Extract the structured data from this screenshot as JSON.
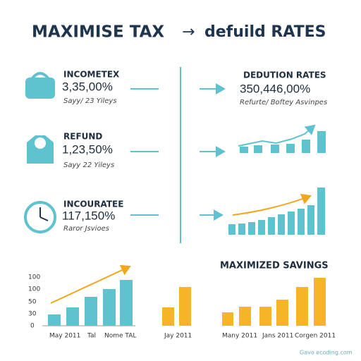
{
  "header": {
    "title_left": "MAXIMISE TAX",
    "title_arrow": "→",
    "title_right": "defuild RATES"
  },
  "items": [
    {
      "label": "INCOMETEX",
      "value": "3,35,00%",
      "note": "Sayy/ 23 Yileys"
    },
    {
      "label": "REFUND",
      "value": "1,23,50%",
      "note": "Sayy 22 Yileys"
    },
    {
      "label": "INCOURATEE",
      "value": "117,150%",
      "note": "Raror Jsvioes"
    }
  ],
  "deduction": {
    "label": "DEDUTION RATES",
    "value": "350,446,00%",
    "note": "Refurte/ Boftey Asvinpes"
  },
  "savings": {
    "title": "MAXIMIZED SAVINGS"
  },
  "axis_labels": [
    "100",
    "100",
    "50",
    "30",
    "0"
  ],
  "bottom_labels": [
    "May 2011",
    "Tal",
    "Nome TAL",
    "Jay 2011",
    "Many 2011",
    "Jans 2011",
    "Corgen 2011"
  ],
  "footer": "Gavo ecoding.com"
}
